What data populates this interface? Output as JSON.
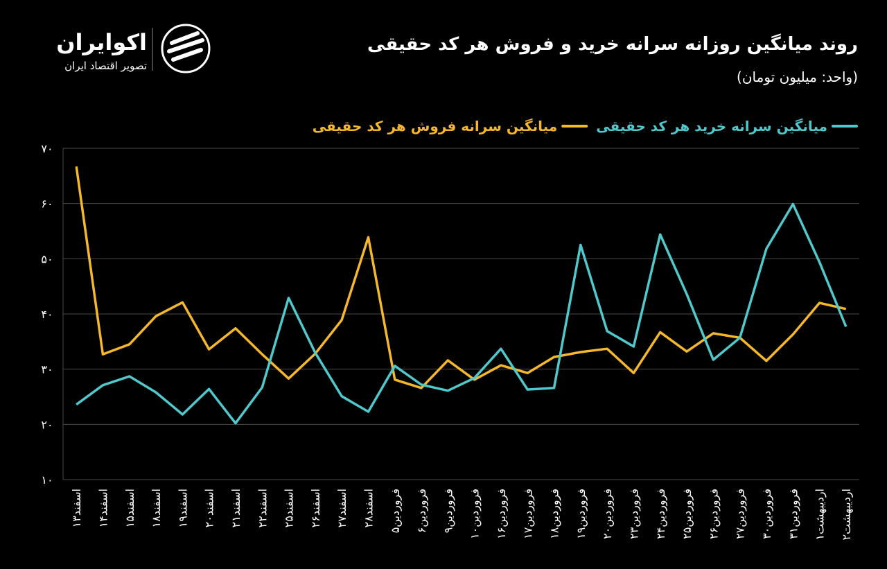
{
  "brand": {
    "name": "اکوایران",
    "tagline": "تصویر اقتصاد ایران"
  },
  "chart_data": {
    "type": "line",
    "title": "روند میانگین روزانه سرانه خرید و فروش هر کد حقیقی",
    "subtitle": "(واحد: میلیون تومان)",
    "categories": [
      "اسفند۱۳",
      "اسفند۱۴",
      "اسفند۱۵",
      "اسفند۱۸",
      "اسفند۱۹",
      "اسفند۲۰",
      "اسفند۲۱",
      "اسفند۲۲",
      "اسفند۲۵",
      "اسفند۲۶",
      "اسفند۲۷",
      "اسفند۲۸",
      "فروردین۵",
      "فروردین۶",
      "فروردین۹",
      "فروردین۱۰",
      "فروردین۱۶",
      "فروردین۱۷",
      "فروردین۱۸",
      "فروردین۱۹",
      "فروردین۲۰",
      "فروردین۲۳",
      "فروردین۲۴",
      "فروردین۲۵",
      "فروردین۲۶",
      "فروردین۲۷",
      "فروردین۳۰",
      "فروردین۳۱",
      "اردیبهشت۱",
      "اردیبهشت۲"
    ],
    "series": [
      {
        "name": "میانگین سرانه خرید هر کد حقیقی",
        "color": "#4fc9cc",
        "values": [
          23.6,
          27.1,
          28.7,
          25.8,
          21.8,
          26.4,
          20.2,
          26.7,
          42.9,
          33.0,
          25.1,
          22.3,
          30.6,
          27.2,
          26.1,
          28.4,
          33.7,
          26.3,
          26.6,
          52.5,
          36.9,
          34.1,
          54.4,
          43.6,
          31.7,
          35.7,
          51.8,
          59.9,
          49.4,
          37.7
        ]
      },
      {
        "name": "میانگین سرانه فروش هر کد حقیقی",
        "color": "#f5b829",
        "values": [
          66.7,
          32.7,
          34.5,
          39.6,
          42.1,
          33.6,
          37.4,
          32.7,
          28.3,
          32.8,
          38.9,
          53.9,
          28.1,
          26.6,
          31.6,
          28.1,
          30.7,
          29.3,
          32.2,
          33.1,
          33.7,
          29.3,
          36.7,
          33.2,
          36.5,
          35.7,
          31.5,
          36.3,
          42.0,
          40.9
        ]
      }
    ],
    "ylim": [
      10,
      70
    ],
    "yticks": [
      {
        "value": 10,
        "label": "۱۰"
      },
      {
        "value": 20,
        "label": "۲۰"
      },
      {
        "value": 30,
        "label": "۳۰"
      },
      {
        "value": 40,
        "label": "۴۰"
      },
      {
        "value": 50,
        "label": "۵۰"
      },
      {
        "value": 60,
        "label": "۶۰"
      },
      {
        "value": 70,
        "label": "۷۰"
      }
    ],
    "grid": true
  }
}
